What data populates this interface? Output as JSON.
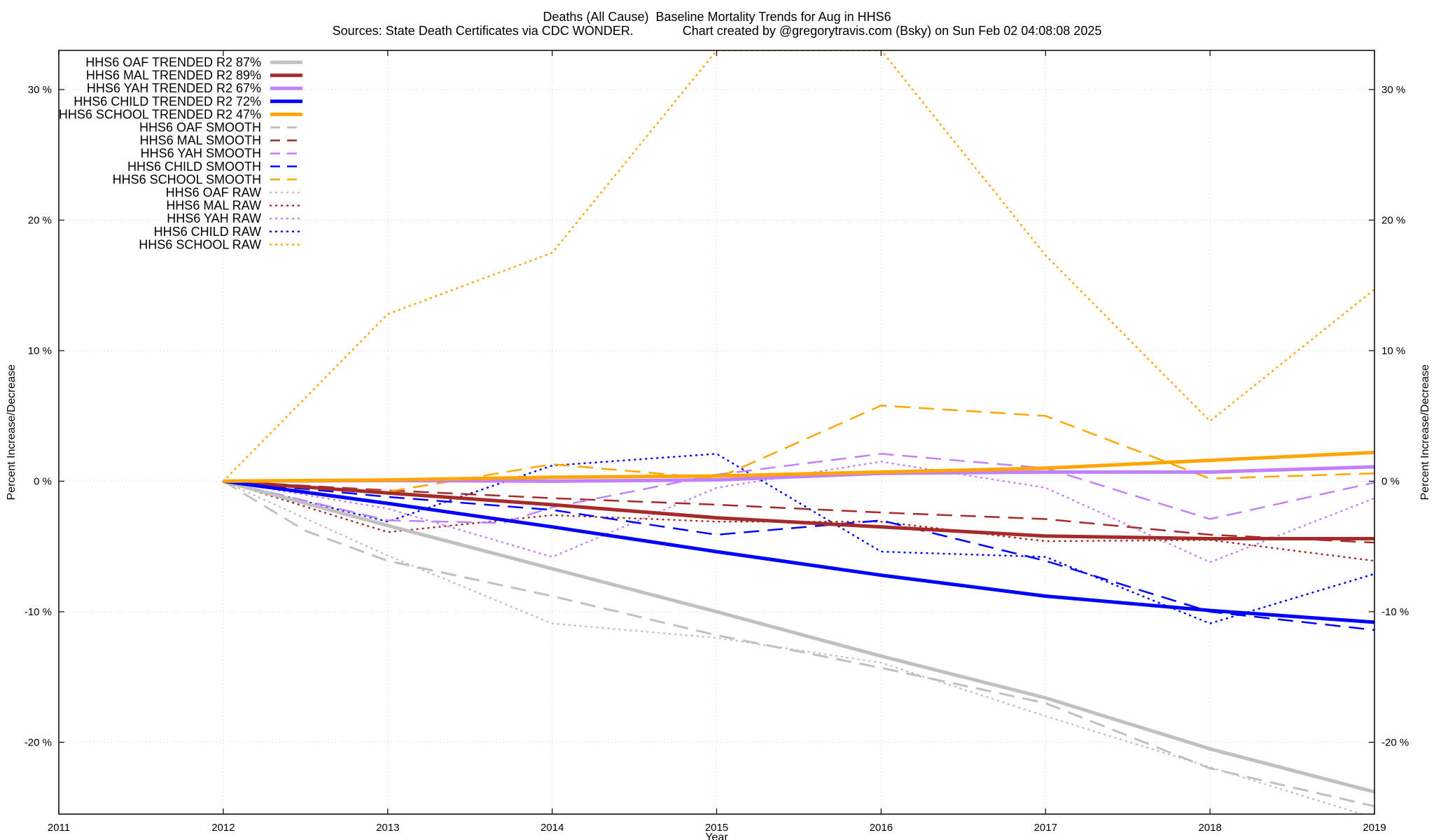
{
  "title": "Deaths (All Cause)  Baseline Mortality Trends for Aug in HHS6",
  "subtitle": "Sources: State Death Certificates via CDC WONDER.              Chart created by @gregorytravis.com (Bsky) on Sun Feb 02 04:08:08 2025",
  "chart_data": {
    "type": "line",
    "title": "Deaths (All Cause)  Baseline Mortality Trends for Aug in HHS6",
    "xlabel": "Year",
    "ylabel": "Percent Increase/Decrease",
    "y2label": "Percent Increase/Decrease",
    "xlim": [
      2011,
      2019
    ],
    "ylim": [
      -25.5,
      33
    ],
    "x_ticks": [
      2011,
      2012,
      2013,
      2014,
      2015,
      2016,
      2017,
      2018,
      2019
    ],
    "x_tick_labels": [
      "2011",
      "2012",
      "2013",
      "2014",
      "2015",
      "2016",
      "2017",
      "2018",
      "2019"
    ],
    "y_ticks": [
      -20,
      -10,
      0,
      10,
      20,
      30
    ],
    "y_tick_labels": [
      "-20 %",
      "-10 %",
      "0 %",
      "10 %",
      "20 %",
      "30 %"
    ],
    "grid": true,
    "legend_position": "top-left",
    "series": [
      {
        "name": "HHS6 OAF TRENDED R2  87%",
        "color": "#c0c0c0",
        "style": "solid",
        "width": 5,
        "x": [
          2012,
          2013,
          2014,
          2015,
          2016,
          2017,
          2018,
          2019
        ],
        "y": [
          0,
          -3.4,
          -6.7,
          -10.0,
          -13.4,
          -16.6,
          -20.5,
          -23.8
        ]
      },
      {
        "name": "HHS6 MAL TRENDED R2  89%",
        "color": "#a52a2a",
        "style": "solid",
        "width": 5,
        "x": [
          2012,
          2013,
          2014,
          2015,
          2016,
          2017,
          2018,
          2019
        ],
        "y": [
          0,
          -0.9,
          -1.8,
          -2.8,
          -3.5,
          -4.2,
          -4.4,
          -4.4
        ]
      },
      {
        "name": "HHS6 YAH TRENDED R2  67%",
        "color": "#c080ff",
        "style": "solid",
        "width": 5,
        "x": [
          2012,
          2013,
          2014,
          2015,
          2016,
          2017,
          2018,
          2019
        ],
        "y": [
          0,
          0.05,
          0.0,
          0.1,
          0.6,
          0.7,
          0.7,
          1.1
        ]
      },
      {
        "name": "HHS6 CHILD TRENDED R2  72%",
        "color": "#0000ff",
        "style": "solid",
        "width": 5,
        "x": [
          2012,
          2013,
          2014,
          2015,
          2016,
          2017,
          2018,
          2019
        ],
        "y": [
          0,
          -1.7,
          -3.5,
          -5.4,
          -7.2,
          -8.8,
          -9.9,
          -10.8
        ]
      },
      {
        "name": "HHS6 SCHOOL TRENDED R2  47%",
        "color": "#ffa500",
        "style": "solid",
        "width": 5,
        "x": [
          2012,
          2013,
          2014,
          2015,
          2016,
          2017,
          2018,
          2019
        ],
        "y": [
          0,
          0.1,
          0.3,
          0.4,
          0.7,
          1.0,
          1.6,
          2.2
        ]
      },
      {
        "name": "HHS6 OAF SMOOTH",
        "color": "#c0c0c0",
        "style": "dash",
        "width": 3,
        "x": [
          2012,
          2012.5,
          2013,
          2014,
          2015,
          2016,
          2017,
          2018,
          2019
        ],
        "y": [
          0,
          -3.8,
          -6.1,
          -8.8,
          -11.8,
          -14.3,
          -17.0,
          -22.0,
          -24.9
        ]
      },
      {
        "name": "HHS6 MAL SMOOTH",
        "color": "#a52a2a",
        "style": "dash",
        "width": 2.5,
        "x": [
          2012,
          2013,
          2014,
          2015,
          2016,
          2017,
          2018,
          2019
        ],
        "y": [
          0,
          -0.7,
          -1.3,
          -1.8,
          -2.4,
          -2.9,
          -4.1,
          -4.7
        ]
      },
      {
        "name": "HHS6 YAH SMOOTH",
        "color": "#c080ff",
        "style": "dash",
        "width": 2.5,
        "x": [
          2012,
          2013,
          2013.7,
          2014,
          2015,
          2016,
          2017,
          2018,
          2019
        ],
        "y": [
          0,
          -3.0,
          -3.2,
          -2.0,
          0.5,
          2.1,
          1.0,
          -2.9,
          -0.1
        ]
      },
      {
        "name": "HHS6 CHILD SMOOTH",
        "color": "#0000ff",
        "style": "dash",
        "width": 2.5,
        "x": [
          2012,
          2013,
          2014,
          2015,
          2016,
          2017,
          2018,
          2019
        ],
        "y": [
          0,
          -1.2,
          -2.2,
          -4.1,
          -3.0,
          -6.1,
          -10.0,
          -11.4
        ]
      },
      {
        "name": "HHS6 SCHOOL SMOOTH",
        "color": "#ffa500",
        "style": "dash",
        "width": 2.5,
        "x": [
          2012,
          2013,
          2014,
          2015,
          2016,
          2017,
          2018,
          2019
        ],
        "y": [
          0,
          -0.8,
          1.3,
          0.2,
          5.8,
          5.0,
          0.2,
          0.6
        ]
      },
      {
        "name": "HHS6 OAF RAW",
        "color": "#c0c0c0",
        "style": "dot",
        "width": 2.5,
        "x": [
          2012,
          2013,
          2014,
          2015,
          2016,
          2017,
          2018,
          2019
        ],
        "y": [
          0,
          -5.7,
          -10.9,
          -12.0,
          -13.9,
          -18.0,
          -21.9,
          -25.8
        ]
      },
      {
        "name": "HHS6 MAL RAW",
        "color": "#a52a2a",
        "style": "dot",
        "width": 2.5,
        "x": [
          2012,
          2013,
          2014,
          2015,
          2016,
          2017,
          2018,
          2019
        ],
        "y": [
          0,
          -3.9,
          -2.6,
          -3.1,
          -3.1,
          -4.6,
          -4.5,
          -6.1
        ]
      },
      {
        "name": "HHS6 YAH RAW",
        "color": "#c080ff",
        "style": "dot",
        "width": 2.5,
        "x": [
          2012,
          2013,
          2014,
          2015,
          2016,
          2017,
          2018,
          2019
        ],
        "y": [
          0,
          -2.1,
          -5.8,
          -0.5,
          1.5,
          -0.5,
          -6.2,
          -1.3
        ]
      },
      {
        "name": "HHS6 CHILD RAW",
        "color": "#0000ff",
        "style": "dot",
        "width": 2.5,
        "x": [
          2012,
          2013,
          2014,
          2015,
          2016,
          2017,
          2018,
          2019
        ],
        "y": [
          0,
          -3.1,
          1.2,
          2.1,
          -5.4,
          -5.8,
          -10.9,
          -7.1
        ]
      },
      {
        "name": "HHS6 SCHOOL RAW",
        "color": "#ffa500",
        "style": "dot",
        "width": 2.5,
        "x": [
          2012,
          2013,
          2014,
          2015,
          2016,
          2017,
          2018,
          2019
        ],
        "y": [
          0,
          12.8,
          17.5,
          33.0,
          33.0,
          17.3,
          4.6,
          14.7
        ]
      }
    ]
  }
}
